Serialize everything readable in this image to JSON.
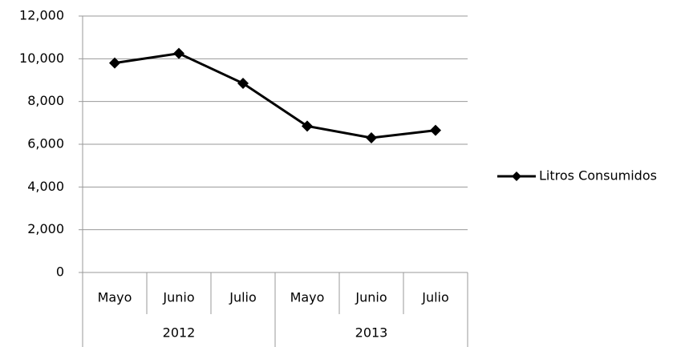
{
  "chart_data": {
    "type": "line",
    "groups": [
      {
        "name": "2012",
        "categories": [
          "Mayo",
          "Junio",
          "Julio"
        ]
      },
      {
        "name": "2013",
        "categories": [
          "Mayo",
          "Junio",
          "Julio"
        ]
      }
    ],
    "series": [
      {
        "name": "Litros Consumidos",
        "color": "#000000",
        "values": [
          9800,
          10250,
          8850,
          6850,
          6300,
          6650
        ]
      }
    ],
    "ylim": [
      0,
      12000
    ],
    "yticks": [
      0,
      {
        "value": 2000,
        "label": "2,000"
      },
      {
        "value": 4000,
        "label": "4,000"
      },
      {
        "value": 6000,
        "label": "6,000"
      },
      {
        "value": 8000,
        "label": "8,000"
      },
      {
        "value": 10000,
        "label": "10,000"
      },
      {
        "value": 12000,
        "label": "12,000"
      }
    ],
    "grid": true,
    "legend": "right"
  }
}
